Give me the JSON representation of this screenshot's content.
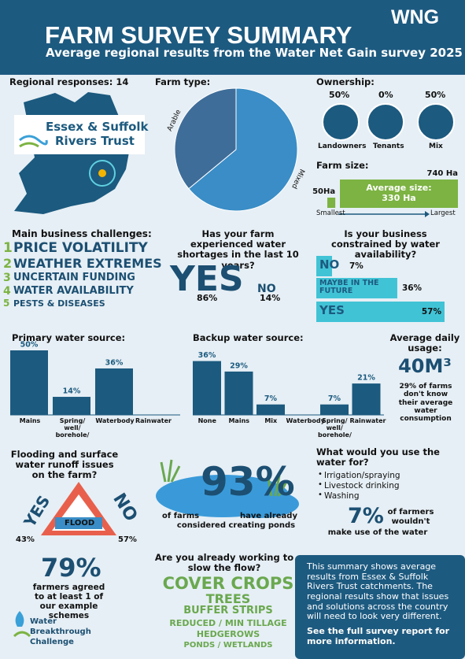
{
  "header": {
    "title": "FARM SURVEY SUMMARY",
    "subtitle": "Average regional results from the Water Net Gain  survey 2025",
    "logo": "WNG"
  },
  "regional": {
    "label": "Regional responses: 14",
    "org_line1": "Essex & Suffolk",
    "org_line2": "Rivers Trust"
  },
  "ownership": {
    "title": "Ownership:",
    "items": [
      {
        "label": "Landowners",
        "value": "50%"
      },
      {
        "label": "Tenants",
        "value": "0%"
      },
      {
        "label": "Mix",
        "value": "50%"
      }
    ]
  },
  "farm_size": {
    "title": "Farm size:",
    "average_label": "Average size:",
    "average_value": "330 Ha",
    "axis_min": "Smallest",
    "axis_max": "Largest"
  },
  "challenges": {
    "title": "Main business challenges:",
    "items": [
      {
        "rank": "1",
        "text": "PRICE VOLATILITY"
      },
      {
        "rank": "2",
        "text": "WEATHER EXTREMES"
      },
      {
        "rank": "3",
        "text": "UNCERTAIN FUNDING"
      },
      {
        "rank": "4",
        "text": "WATER AVAILABILITY"
      },
      {
        "rank": "5",
        "text": "PESTS & DISEASES"
      }
    ]
  },
  "shortages": {
    "title": "Has your farm experienced water shortages in the last 10 years?",
    "yes": "YES",
    "yes_value": "86%",
    "no": "NO",
    "no_value": "14%"
  },
  "usage": {
    "title": "Average daily usage:",
    "value": "40M³",
    "note": "29% of farms don't know their average water consumption"
  },
  "flooding": {
    "title": "Flooding and surface water runoff issues on the farm?",
    "sign": "FLOOD",
    "yes": "YES",
    "yes_value": "43%",
    "no": "NO",
    "no_value": "57%"
  },
  "ponds": {
    "value": "93%",
    "text1": "of farms",
    "text2": "have already",
    "text3": "considered creating ponds"
  },
  "use": {
    "title": "What would you use the water for?",
    "items": [
      "Irrigation/spraying",
      "Livestock drinking",
      "Washing"
    ],
    "value": "7%",
    "text1": "of farmers wouldn't",
    "text2": "make use of the water"
  },
  "schemes": {
    "value": "79%",
    "text": "farmers agreed to at least 1 of our example schemes"
  },
  "flow": {
    "title": "Are you already working to slow the flow?",
    "items": [
      "COVER CROPS",
      "TREES",
      "BUFFER STRIPS",
      "REDUCED / MIN TILLAGE",
      "HEDGEROWS",
      "PONDS / WETLANDS"
    ]
  },
  "info": {
    "text": "This summary shows average results from Essex & Suffolk Rivers Trust catchments. The regional results show that issues and solutions across the country will need to look very different.",
    "bold": "See the full survey report for more information."
  },
  "footer_logo": {
    "line1": "Water",
    "line2": "Breakthrough",
    "line3": "Challenge"
  },
  "chart_data": [
    {
      "type": "pie",
      "title": "Farm type:",
      "categories": [
        "Arable",
        "Mixed"
      ],
      "values": [
        36,
        64
      ],
      "colors": [
        "#3f6d99",
        "#3a8dc6"
      ]
    },
    {
      "type": "hbar",
      "categories": [
        null,
        null
      ],
      "values": [
        50,
        740
      ],
      "value_labels": [
        "50Ha",
        "740 Ha"
      ],
      "color": "#7cb342"
    },
    {
      "type": "hbar",
      "title": "Is your business constrained by water availability?",
      "categories": [
        "NO",
        "MAYBE IN THE FUTURE",
        "YES"
      ],
      "values": [
        7,
        36,
        57
      ],
      "value_labels": [
        "7%",
        "36%",
        "57%"
      ],
      "color": "#41c3d6"
    },
    {
      "type": "bar",
      "title": "Primary water source:",
      "categories": [
        "Mains",
        "Spring/ well/ borehole/",
        "Waterbody",
        "Rainwater"
      ],
      "values": [
        50,
        14,
        36,
        0
      ],
      "value_labels": [
        "50%",
        "14%",
        "36%",
        null
      ],
      "color": "#1c5a7f"
    },
    {
      "type": "bar",
      "title": "Backup water source:",
      "categories": [
        "None",
        "Mains",
        "Mix",
        "Waterbody",
        "Spring/ well/ borehole/",
        "Rainwater"
      ],
      "values": [
        36,
        29,
        7,
        0,
        7,
        21
      ],
      "value_labels": [
        "36%",
        "29%",
        "7%",
        null,
        "7%",
        "21%"
      ],
      "color": "#1c5a7f"
    }
  ]
}
